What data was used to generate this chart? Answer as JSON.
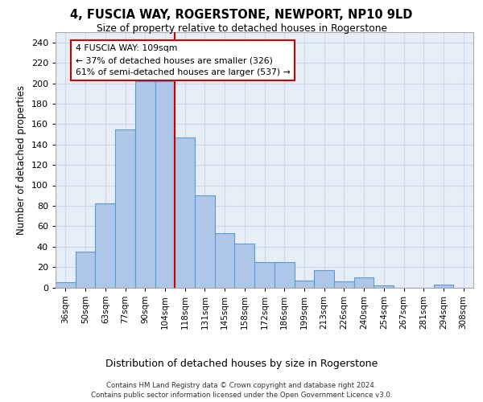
{
  "title_line1": "4, FUSCIA WAY, ROGERSTONE, NEWPORT, NP10 9LD",
  "title_line2": "Size of property relative to detached houses in Rogerstone",
  "xlabel": "Distribution of detached houses by size in Rogerstone",
  "ylabel": "Number of detached properties",
  "categories": [
    "36sqm",
    "50sqm",
    "63sqm",
    "77sqm",
    "90sqm",
    "104sqm",
    "118sqm",
    "131sqm",
    "145sqm",
    "158sqm",
    "172sqm",
    "186sqm",
    "199sqm",
    "213sqm",
    "226sqm",
    "240sqm",
    "254sqm",
    "267sqm",
    "281sqm",
    "294sqm",
    "308sqm"
  ],
  "values": [
    5,
    35,
    82,
    155,
    202,
    202,
    147,
    90,
    53,
    43,
    25,
    25,
    7,
    17,
    6,
    10,
    2,
    0,
    0,
    3,
    0
  ],
  "bar_color": "#aec6e8",
  "bar_edge_color": "#5b9bd5",
  "vline_idx": 5,
  "vline_color": "#cc0000",
  "ann_line1": "4 FUSCIA WAY: 109sqm",
  "ann_line2": "← 37% of detached houses are smaller (326)",
  "ann_line3": "61% of semi-detached houses are larger (537) →",
  "annotation_box_color": "#ffffff",
  "annotation_box_edge": "#cc0000",
  "ylim": [
    0,
    250
  ],
  "yticks": [
    0,
    20,
    40,
    60,
    80,
    100,
    120,
    140,
    160,
    180,
    200,
    220,
    240
  ],
  "grid_color": "#d0d8e8",
  "bg_color": "#e8eef8",
  "footer_line1": "Contains HM Land Registry data © Crown copyright and database right 2024.",
  "footer_line2": "Contains public sector information licensed under the Open Government Licence v3.0."
}
